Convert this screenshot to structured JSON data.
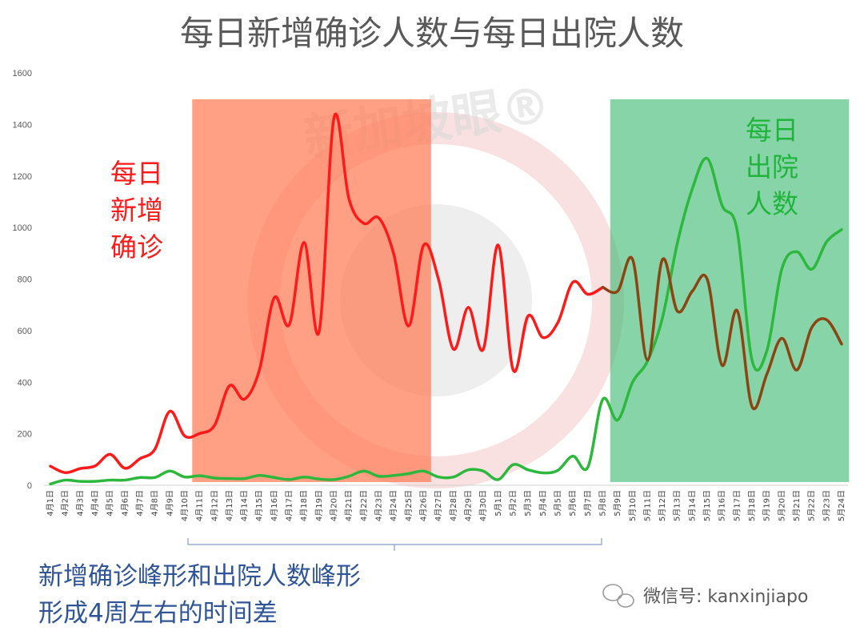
{
  "chart_data": {
    "type": "line",
    "title": "每日新增确诊人数与每日出院人数",
    "ylim": [
      0,
      1600
    ],
    "yticks": [
      0,
      200,
      400,
      600,
      800,
      1000,
      1200,
      1400,
      1600
    ],
    "categories": [
      "4月1日",
      "4月2日",
      "4月3日",
      "4月4日",
      "4月5日",
      "4月6日",
      "4月7日",
      "4月8日",
      "4月9日",
      "4月10日",
      "4月11日",
      "4月12日",
      "4月13日",
      "4月14日",
      "4月15日",
      "4月16日",
      "4月17日",
      "4月18日",
      "4月19日",
      "4月20日",
      "4月21日",
      "4月22日",
      "4月23日",
      "4月24日",
      "4月25日",
      "4月26日",
      "4月27日",
      "4月28日",
      "4月29日",
      "4月30日",
      "5月1日",
      "5月2日",
      "5月3日",
      "5月4日",
      "5月5日",
      "5月6日",
      "5月7日",
      "5月8日",
      "5月9日",
      "5月10日",
      "5月11日",
      "5月12日",
      "5月13日",
      "5月14日",
      "5月15日",
      "5月16日",
      "5月17日",
      "5月18日",
      "5月19日",
      "5月20日",
      "5月21日",
      "5月22日",
      "5月23日",
      "5月24日"
    ],
    "series": [
      {
        "color": "#ff1a1a",
        "values": [
          74,
          49,
          65,
          75,
          120,
          66,
          103,
          140,
          287,
          191,
          201,
          233,
          386,
          334,
          447,
          728,
          623,
          942,
          596,
          1426,
          1111,
          1016,
          1037,
          897,
          618,
          931,
          799,
          528,
          690,
          528,
          932,
          447,
          657,
          573,
          632,
          788,
          741,
          768,
          null,
          null,
          null,
          null,
          null,
          null,
          null,
          null,
          null,
          null,
          null,
          null,
          null,
          null,
          null,
          null
        ]
      },
      {
        "color": "#8b4513",
        "values": [
          null,
          null,
          null,
          null,
          null,
          null,
          null,
          null,
          null,
          null,
          null,
          null,
          null,
          null,
          null,
          null,
          null,
          null,
          null,
          null,
          null,
          null,
          null,
          null,
          null,
          null,
          null,
          null,
          null,
          null,
          null,
          null,
          null,
          null,
          null,
          null,
          null,
          768,
          753,
          876,
          486,
          876,
          675,
          753,
          799,
          465,
          678,
          305,
          432,
          570,
          447,
          612,
          642,
          548
        ]
      },
      {
        "color": "#2db83d",
        "values": [
          5,
          20,
          15,
          15,
          20,
          20,
          30,
          30,
          55,
          32,
          37,
          28,
          26,
          26,
          38,
          30,
          22,
          32,
          24,
          22,
          35,
          55,
          35,
          38,
          45,
          55,
          32,
          32,
          60,
          55,
          22,
          80,
          60,
          48,
          58,
          113,
          70,
          333,
          253,
          400,
          482,
          650,
          940,
          1150,
          1268,
          1085,
          990,
          485,
          523,
          840,
          906,
          838,
          945,
          992
        ]
      }
    ],
    "shaded_regions": [
      {
        "from": "4月11日",
        "to": "4月26日",
        "color": "#ff7a55",
        "opacity": 0.72
      },
      {
        "from": "5月9日",
        "to": "5月24日",
        "color": "#38b870",
        "opacity": 0.6
      }
    ],
    "annotations": {
      "red_label": [
        "每日",
        "新增",
        "确诊"
      ],
      "green_label": [
        "每日",
        "出院",
        "人数"
      ],
      "note_line1": "新增确诊峰形和出院人数峰形",
      "note_line2": "形成4周左右的时间差"
    },
    "watermark_text": "新加坡眼®",
    "wechat_text": "微信号: kanxinjiapo"
  }
}
